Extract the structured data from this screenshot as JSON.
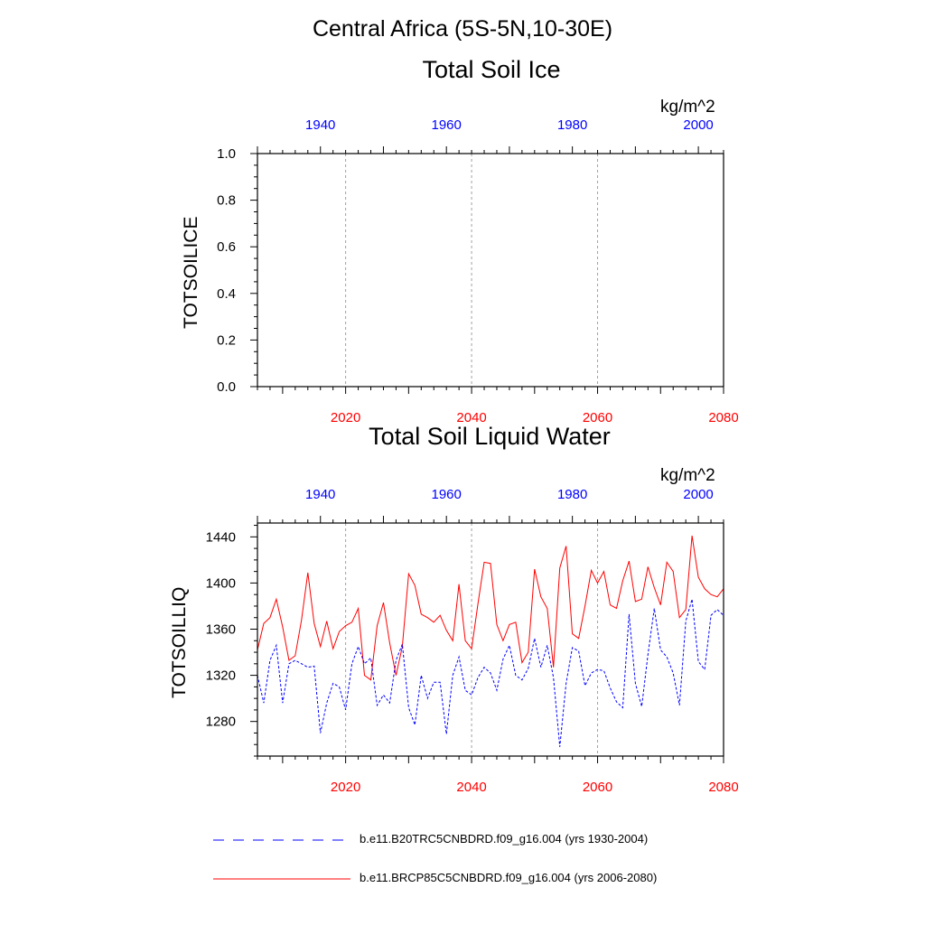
{
  "figure": {
    "title": "Central Africa (5S-5N,10-30E)"
  },
  "colors": {
    "bottom_axis": "#ff0000",
    "top_axis": "#0000ff",
    "series_rcp": "#ff0000",
    "series_hist": "#0000ff",
    "grid": "#a0a0a0"
  },
  "chart_data": [
    {
      "type": "line",
      "title": "Total Soil Ice",
      "units": "kg/m^2",
      "ylabel": "TOTSOILICE",
      "xlim": [
        2006,
        2080
      ],
      "x_top_lim": [
        1930,
        2004
      ],
      "ylim": [
        0,
        1
      ],
      "x_ticks": [
        2020,
        2040,
        2060,
        2080
      ],
      "x_top_ticks": [
        1940,
        1960,
        1980,
        2000
      ],
      "y_ticks": [
        0.0,
        0.2,
        0.4,
        0.6,
        0.8,
        1.0
      ],
      "y_tick_labels": [
        "0.0",
        "0.2",
        "0.4",
        "0.6",
        "0.8",
        "1.0"
      ],
      "grid": "vertical dashed at bottom-axis ticks",
      "series": []
    },
    {
      "type": "line",
      "title": "Total Soil Liquid Water",
      "units": "kg/m^2",
      "ylabel": "TOTSOILLIQ",
      "xlim": [
        2006,
        2080
      ],
      "x_top_lim": [
        1930,
        2004
      ],
      "ylim": [
        1250,
        1452
      ],
      "x_ticks": [
        2020,
        2040,
        2060,
        2080
      ],
      "x_top_ticks": [
        1940,
        1960,
        1980,
        2000
      ],
      "y_ticks": [
        1280,
        1320,
        1360,
        1400,
        1440
      ],
      "y_tick_labels": [
        "1280",
        "1320",
        "1360",
        "1400",
        "1440"
      ],
      "grid": "vertical dashed at bottom-axis ticks",
      "x": [
        2006,
        2007,
        2008,
        2009,
        2010,
        2011,
        2012,
        2013,
        2014,
        2015,
        2016,
        2017,
        2018,
        2019,
        2020,
        2021,
        2022,
        2023,
        2024,
        2025,
        2026,
        2027,
        2028,
        2029,
        2030,
        2031,
        2032,
        2033,
        2034,
        2035,
        2036,
        2037,
        2038,
        2039,
        2040,
        2041,
        2042,
        2043,
        2044,
        2045,
        2046,
        2047,
        2048,
        2049,
        2050,
        2051,
        2052,
        2053,
        2054,
        2055,
        2056,
        2057,
        2058,
        2059,
        2060,
        2061,
        2062,
        2063,
        2064,
        2065,
        2066,
        2067,
        2068,
        2069,
        2070,
        2071,
        2072,
        2073,
        2074,
        2075,
        2076,
        2077,
        2078,
        2079,
        2080
      ],
      "series": [
        {
          "name": "b.e11.BRCP85C5CNBDRD.f09_g16.004 (yrs 2006-2080)",
          "axis": "bottom",
          "style": "solid",
          "values": [
            1342,
            1365,
            1370,
            1386,
            1362,
            1333,
            1337,
            1368,
            1409,
            1365,
            1345,
            1367,
            1343,
            1358,
            1363,
            1366,
            1378,
            1320,
            1316,
            1363,
            1383,
            1348,
            1320,
            1345,
            1408,
            1398,
            1373,
            1370,
            1366,
            1372,
            1359,
            1350,
            1399,
            1350,
            1343,
            1382,
            1418,
            1417,
            1364,
            1350,
            1364,
            1366,
            1331,
            1340,
            1412,
            1388,
            1378,
            1327,
            1413,
            1432,
            1356,
            1352,
            1380,
            1411,
            1400,
            1410,
            1381,
            1378,
            1402,
            1419,
            1384,
            1386,
            1414,
            1396,
            1381,
            1418,
            1410,
            1370,
            1377,
            1441,
            1405,
            1395,
            1390,
            1388,
            1395
          ]
        },
        {
          "name": "b.e11.B20TRC5CNBDRD.f09_g16.004 (yrs 1930-2004)",
          "axis": "top",
          "style": "dashed",
          "values": [
            1320,
            1296,
            1333,
            1346,
            1296,
            1330,
            1333,
            1330,
            1327,
            1328,
            1270,
            1296,
            1313,
            1310,
            1290,
            1330,
            1345,
            1330,
            1335,
            1294,
            1303,
            1296,
            1333,
            1347,
            1292,
            1277,
            1320,
            1300,
            1314,
            1314,
            1269,
            1320,
            1336,
            1307,
            1303,
            1318,
            1327,
            1322,
            1307,
            1334,
            1346,
            1320,
            1316,
            1326,
            1352,
            1327,
            1346,
            1318,
            1258,
            1313,
            1344,
            1341,
            1311,
            1322,
            1325,
            1324,
            1309,
            1297,
            1292,
            1373,
            1313,
            1293,
            1338,
            1378,
            1342,
            1336,
            1322,
            1294,
            1367,
            1386,
            1332,
            1325,
            1372,
            1377,
            1372
          ]
        }
      ]
    }
  ]
}
